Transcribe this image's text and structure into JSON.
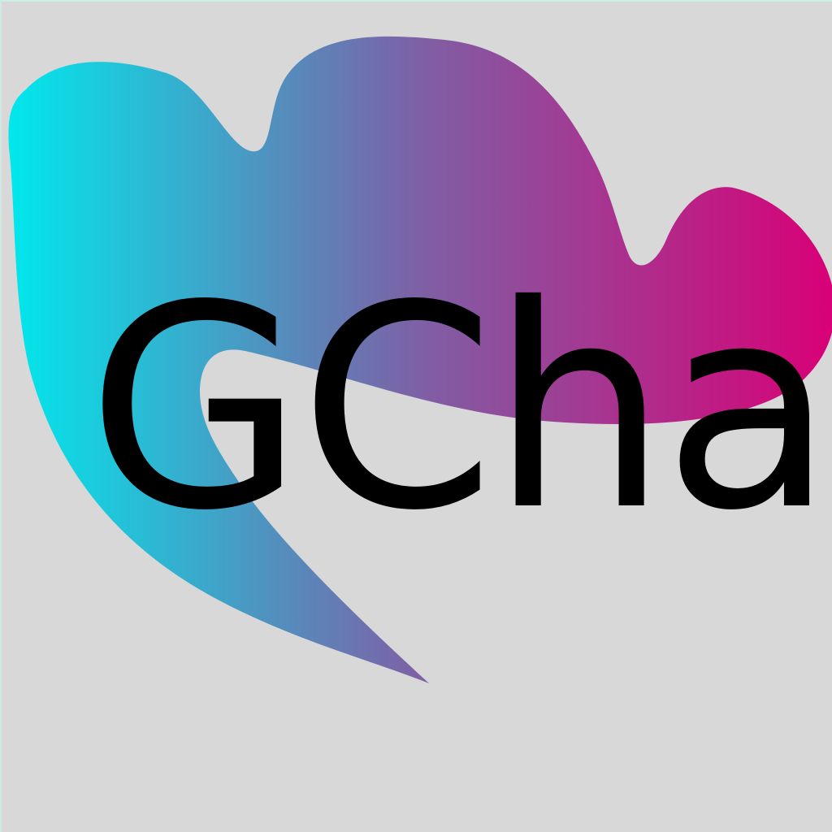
{
  "logo": {
    "wordmark": "GChat",
    "colors": {
      "background": "#d8d8d8",
      "gradient_start": "#00e8ec",
      "gradient_middle": "#7f5fa5",
      "gradient_end": "#d90076",
      "text": "#000000"
    },
    "icon": "speech-bubble-icon"
  }
}
